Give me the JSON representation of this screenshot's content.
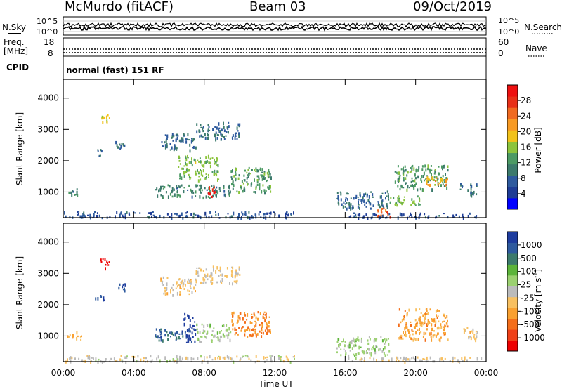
{
  "header": {
    "station": "McMurdo (fitACF)",
    "beam": "Beam 03",
    "date": "09/Oct/2019"
  },
  "noise_panel": {
    "left_label": "N.Sky",
    "right_label": "N.Search",
    "left_ticks": [
      "10^5",
      "10^0"
    ],
    "right_ticks": [
      "10^5",
      "10^0"
    ]
  },
  "freq_panel": {
    "left_label_1": "Freq.",
    "left_label_2": "[MHz]",
    "right_label": "Nave",
    "left_ticks": [
      "18",
      "8"
    ],
    "right_ticks": [
      "60",
      "0"
    ]
  },
  "cpid": {
    "label": "CPID",
    "mode": "normal (fast) 151 RF"
  },
  "x_axis": {
    "label": "Time UT",
    "ticks": [
      "00:00",
      "04:00",
      "08:00",
      "12:00",
      "16:00",
      "20:00",
      "00:00"
    ]
  },
  "colors": {
    "scale_power": [
      "#0000ff",
      "#1e3c96",
      "#2e5a9e",
      "#3c7a6c",
      "#4c9a64",
      "#8cc43c",
      "#f2c21a",
      "#f89a22",
      "#f06a20",
      "#e83018",
      "#ee1010"
    ],
    "scale_velocity": [
      "#ee0000",
      "#f04018",
      "#f46e1a",
      "#f9a030",
      "#f8c060",
      "#bbbbbb",
      "#9bd070",
      "#5cb43a",
      "#3c7a6c",
      "#2e5a9e",
      "#1e3c9e"
    ]
  },
  "chart_data": [
    {
      "type": "heatmap",
      "title": "",
      "xlabel": "Time UT",
      "ylabel": "Slant Range [km]",
      "y_ticks": [
        "1000",
        "2000",
        "3000",
        "4000"
      ],
      "xlim": [
        0,
        24
      ],
      "ylim": [
        180,
        4600
      ],
      "colorbar": {
        "label": "Power [dB]",
        "ticks": [
          "4",
          "8",
          "12",
          "16",
          "20",
          "24",
          "28"
        ],
        "range": [
          0,
          30
        ]
      },
      "regions": [
        {
          "t": [
            2.1,
            2.6
          ],
          "r": [
            3200,
            3550
          ],
          "level": 16
        },
        {
          "t": [
            1.8,
            2.3
          ],
          "r": [
            2150,
            2400
          ],
          "level": 8
        },
        {
          "t": [
            2.9,
            3.5
          ],
          "r": [
            2400,
            2700
          ],
          "level": 8
        },
        {
          "t": [
            0.2,
            1.0
          ],
          "r": [
            900,
            1150
          ],
          "level": 10
        },
        {
          "t": [
            5.2,
            9.5
          ],
          "r": [
            850,
            1250
          ],
          "level": 10
        },
        {
          "t": [
            6.5,
            8.8
          ],
          "r": [
            1400,
            2200
          ],
          "level": 14
        },
        {
          "t": [
            8.2,
            8.7
          ],
          "r": [
            850,
            1200
          ],
          "level": 28
        },
        {
          "t": [
            9.3,
            11.8
          ],
          "r": [
            1000,
            1800
          ],
          "level": 12
        },
        {
          "t": [
            5.5,
            7.5
          ],
          "r": [
            2350,
            2900
          ],
          "level": 8
        },
        {
          "t": [
            7.5,
            10.0
          ],
          "r": [
            2700,
            3250
          ],
          "level": 8
        },
        {
          "t": [
            0.0,
            13.2
          ],
          "r": [
            200,
            400
          ],
          "level": 6
        },
        {
          "t": [
            15.5,
            18.5
          ],
          "r": [
            500,
            1050
          ],
          "level": 8
        },
        {
          "t": [
            17.5,
            18.6
          ],
          "r": [
            200,
            500
          ],
          "level": 24
        },
        {
          "t": [
            16.0,
            23.8
          ],
          "r": [
            200,
            350
          ],
          "level": 6
        },
        {
          "t": [
            18.8,
            21.8
          ],
          "r": [
            1100,
            1900
          ],
          "level": 12
        },
        {
          "t": [
            20.5,
            21.8
          ],
          "r": [
            1200,
            1500
          ],
          "level": 20
        },
        {
          "t": [
            22.5,
            23.5
          ],
          "r": [
            900,
            1300
          ],
          "level": 8
        },
        {
          "t": [
            18.5,
            20.5
          ],
          "r": [
            600,
            900
          ],
          "level": 14
        }
      ]
    },
    {
      "type": "heatmap",
      "title": "",
      "xlabel": "Time UT",
      "ylabel": "Slant Range [km]",
      "y_ticks": [
        "1000",
        "2000",
        "3000",
        "4000"
      ],
      "xlim": [
        0,
        24
      ],
      "ylim": [
        180,
        4600
      ],
      "colorbar": {
        "label": "Velocity [m s^-1]",
        "ticks": [
          "1000",
          "500",
          "100",
          "25",
          "-25",
          "-100",
          "-500",
          "-1000"
        ],
        "range": [
          -1000,
          1000
        ]
      },
      "regions": [
        {
          "t": [
            2.1,
            2.6
          ],
          "r": [
            3200,
            3550
          ],
          "level": -1000
        },
        {
          "t": [
            1.8,
            2.3
          ],
          "r": [
            2150,
            2400
          ],
          "level": 800
        },
        {
          "t": [
            2.9,
            3.5
          ],
          "r": [
            2400,
            2700
          ],
          "level": 800
        },
        {
          "t": [
            0.2,
            1.0
          ],
          "r": [
            900,
            1150
          ],
          "level": -200
        },
        {
          "t": [
            5.2,
            6.8
          ],
          "r": [
            850,
            1250
          ],
          "level": 700
        },
        {
          "t": [
            6.8,
            7.5
          ],
          "r": [
            800,
            1800
          ],
          "level": 900
        },
        {
          "t": [
            7.5,
            9.5
          ],
          "r": [
            850,
            1400
          ],
          "level": 150
        },
        {
          "t": [
            9.5,
            11.8
          ],
          "r": [
            1000,
            1800
          ],
          "level": -450
        },
        {
          "t": [
            5.5,
            7.5
          ],
          "r": [
            2350,
            2900
          ],
          "level": -150
        },
        {
          "t": [
            7.5,
            10.0
          ],
          "r": [
            2700,
            3250
          ],
          "level": -100
        },
        {
          "t": [
            0.0,
            13.2
          ],
          "r": [
            200,
            400
          ],
          "level": -20
        },
        {
          "t": [
            15.5,
            18.5
          ],
          "r": [
            400,
            1000
          ],
          "level": 150
        },
        {
          "t": [
            16.0,
            23.8
          ],
          "r": [
            200,
            350
          ],
          "level": -60
        },
        {
          "t": [
            19.0,
            21.8
          ],
          "r": [
            900,
            1900
          ],
          "level": -350
        },
        {
          "t": [
            22.5,
            23.5
          ],
          "r": [
            900,
            1300
          ],
          "level": -150
        }
      ]
    }
  ]
}
